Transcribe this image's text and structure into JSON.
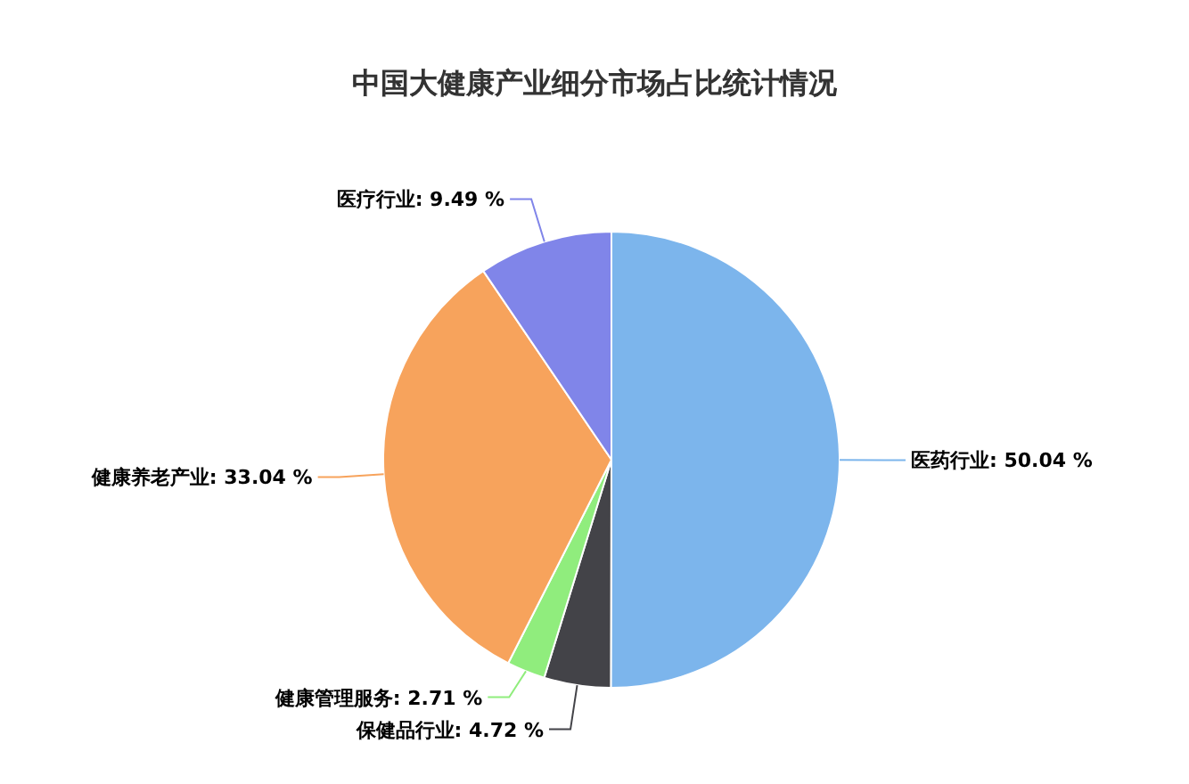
{
  "chart_data": {
    "type": "pie",
    "title": "中国大健康产业细分市场占比统计情况",
    "categories": [
      "医药行业",
      "保健品行业",
      "健康管理服务",
      "健康养老产业",
      "医疗行业"
    ],
    "values": [
      50.04,
      4.72,
      2.71,
      33.04,
      9.49
    ],
    "value_labels": [
      "50.04 %",
      "4.72 %",
      "2.71 %",
      "33.04 %",
      "9.49 %"
    ],
    "colors": [
      "#7cb5ec",
      "#434348",
      "#90ed7d",
      "#f7a35c",
      "#8085e9"
    ]
  }
}
